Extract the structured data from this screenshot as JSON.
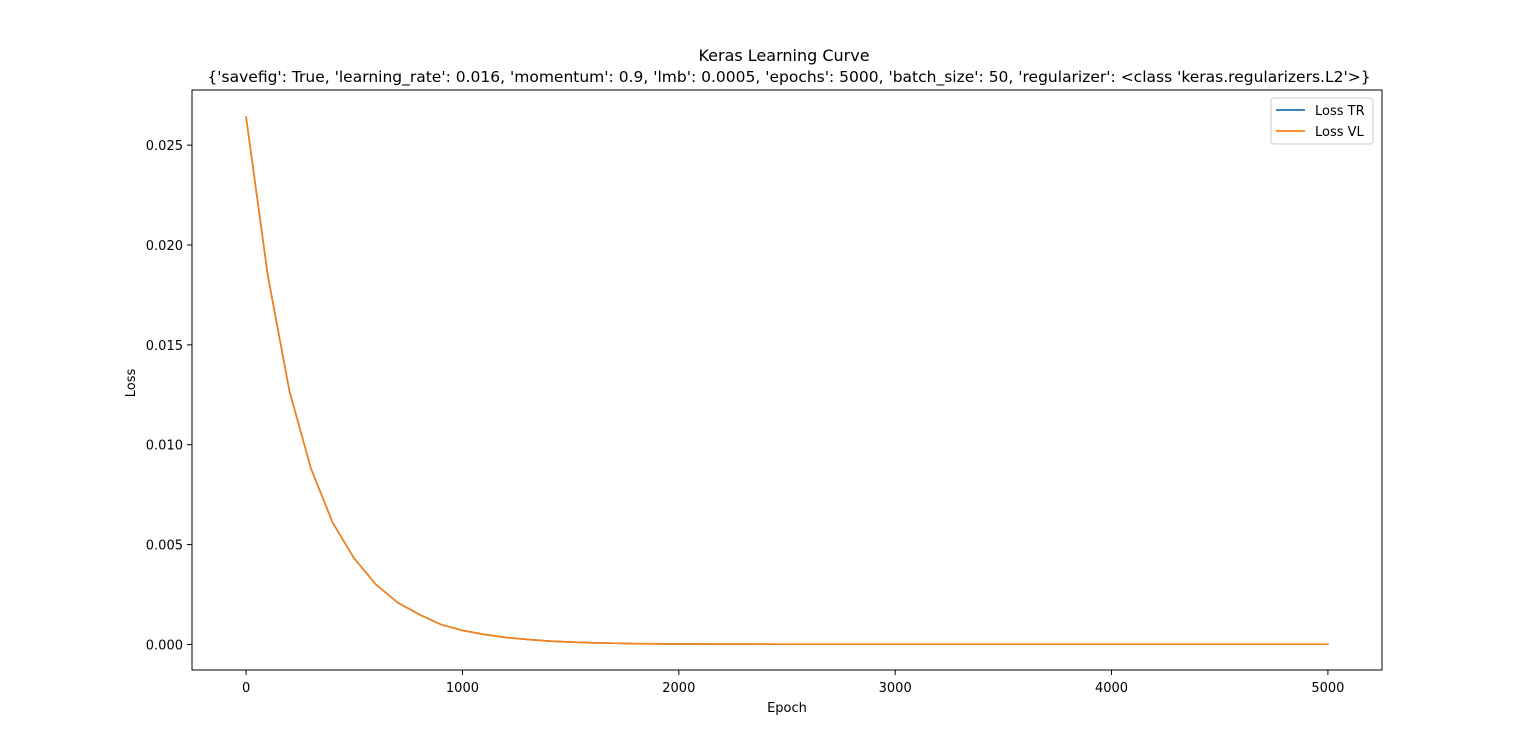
{
  "chart_data": {
    "type": "line",
    "title": "Keras Learning Curve",
    "subtitle": "{'savefig': True, 'learning_rate': 0.016, 'momentum': 0.9, 'lmb': 0.0005, 'epochs': 5000, 'batch_size': 50, 'regularizer': <class 'keras.regularizers.L2'>}",
    "xlabel": "Epoch",
    "ylabel": "Loss",
    "xlim": [
      -250,
      5250
    ],
    "ylim": [
      -0.00128,
      0.02776
    ],
    "xticks": [
      0,
      1000,
      2000,
      3000,
      4000,
      5000
    ],
    "xtick_labels": [
      "0",
      "1000",
      "2000",
      "3000",
      "4000",
      "5000"
    ],
    "yticks": [
      0.0,
      0.005,
      0.01,
      0.015,
      0.02,
      0.025
    ],
    "ytick_labels": [
      "0.000",
      "0.005",
      "0.010",
      "0.015",
      "0.020",
      "0.025"
    ],
    "grid": false,
    "legend_position": "top-right",
    "series": [
      {
        "name": "Loss TR",
        "color": "#1f77b4",
        "x": [
          0,
          100,
          200,
          300,
          400,
          500,
          600,
          700,
          800,
          900,
          1000,
          1100,
          1200,
          1300,
          1400,
          1500,
          1600,
          1700,
          1800,
          1900,
          2000,
          2500,
          3000,
          3500,
          4000,
          4500,
          5000
        ],
        "y": [
          0.0264,
          0.0185,
          0.0127,
          0.0088,
          0.0061,
          0.0043,
          0.003,
          0.0021,
          0.0015,
          0.001,
          0.0007,
          0.0005,
          0.00035,
          0.00025,
          0.00017,
          0.00012,
          8e-05,
          6e-05,
          4e-05,
          3e-05,
          2e-05,
          1e-05,
          1e-05,
          1e-05,
          1e-05,
          1e-05,
          1e-05
        ]
      },
      {
        "name": "Loss VL",
        "color": "#ff7f0e",
        "x": [
          0,
          100,
          200,
          300,
          400,
          500,
          600,
          700,
          800,
          900,
          1000,
          1100,
          1200,
          1300,
          1400,
          1500,
          1600,
          1700,
          1800,
          1900,
          2000,
          2500,
          3000,
          3500,
          4000,
          4500,
          5000
        ],
        "y": [
          0.0264,
          0.0185,
          0.0127,
          0.0088,
          0.0061,
          0.0043,
          0.003,
          0.0021,
          0.0015,
          0.001,
          0.0007,
          0.0005,
          0.00035,
          0.00025,
          0.00017,
          0.00012,
          8e-05,
          6e-05,
          4e-05,
          3e-05,
          2e-05,
          1e-05,
          1e-05,
          1e-05,
          1e-05,
          1e-05,
          1e-05
        ]
      }
    ]
  }
}
